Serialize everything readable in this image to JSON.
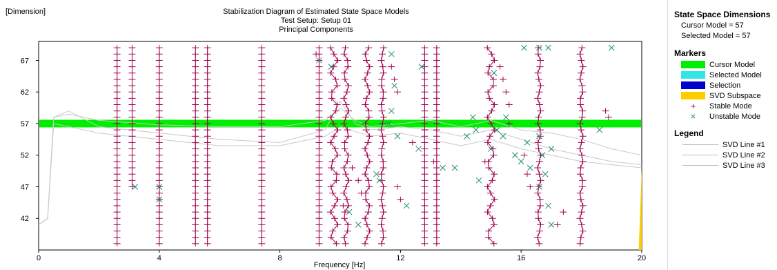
{
  "corner_label": "[Dimension]",
  "chart_data": {
    "type": "scatter",
    "title": "Stabilization Diagram of Estimated State Space Models",
    "subtitle": [
      "Test Setup: Setup 01",
      "Principal Components"
    ],
    "xlabel": "Frequency [Hz]",
    "ylabel": "",
    "xlim": [
      0,
      20
    ],
    "ylim": [
      37,
      70
    ],
    "xticks": [
      0,
      4,
      8,
      12,
      16,
      20
    ],
    "yticks": [
      42,
      47,
      52,
      57,
      62,
      67
    ],
    "grid": false,
    "cursor_model": 57,
    "stable_columns": [
      {
        "x": 2.6,
        "ymin": 38,
        "ymax": 69,
        "wobble": 0
      },
      {
        "x": 3.1,
        "ymin": 47,
        "ymax": 69,
        "wobble": 0
      },
      {
        "x": 4.0,
        "ymin": 38,
        "ymax": 69,
        "wobble": 0
      },
      {
        "x": 5.2,
        "ymin": 38,
        "ymax": 69,
        "wobble": 0
      },
      {
        "x": 5.6,
        "ymin": 38,
        "ymax": 69,
        "wobble": 0
      },
      {
        "x": 7.4,
        "ymin": 38,
        "ymax": 69,
        "wobble": 0
      },
      {
        "x": 9.3,
        "ymin": 38,
        "ymax": 69,
        "wobble": 0
      },
      {
        "x": 9.8,
        "ymin": 38,
        "ymax": 69,
        "wobble": 0.12
      },
      {
        "x": 10.2,
        "ymin": 38,
        "ymax": 69,
        "wobble": 0.08
      },
      {
        "x": 10.9,
        "ymin": 38,
        "ymax": 69,
        "wobble": 0.08
      },
      {
        "x": 11.4,
        "ymin": 38,
        "ymax": 69,
        "wobble": 0.04
      },
      {
        "x": 12.8,
        "ymin": 38,
        "ymax": 69,
        "wobble": 0
      },
      {
        "x": 13.2,
        "ymin": 38,
        "ymax": 69,
        "wobble": 0
      },
      {
        "x": 15.0,
        "ymin": 38,
        "ymax": 69,
        "wobble": 0.12
      },
      {
        "x": 16.6,
        "ymin": 38,
        "ymax": 69,
        "wobble": 0.05
      },
      {
        "x": 18.0,
        "ymin": 38,
        "ymax": 69,
        "wobble": 0.05
      }
    ],
    "extra_stable": [
      [
        9.2,
        68
      ],
      [
        11.7,
        66
      ],
      [
        11.8,
        64
      ],
      [
        11.9,
        62
      ],
      [
        10.6,
        48
      ],
      [
        10.7,
        46
      ],
      [
        10.1,
        44
      ],
      [
        11.9,
        47
      ],
      [
        12.0,
        45
      ],
      [
        13.1,
        51
      ],
      [
        14.8,
        51
      ],
      [
        15.3,
        66
      ],
      [
        15.4,
        64
      ],
      [
        15.5,
        62
      ],
      [
        15.6,
        60
      ],
      [
        15.6,
        57
      ],
      [
        16.1,
        52
      ],
      [
        16.2,
        49
      ],
      [
        16.3,
        47
      ],
      [
        17.4,
        43
      ],
      [
        17.2,
        41
      ],
      [
        18.8,
        59
      ],
      [
        18.9,
        58
      ],
      [
        12.4,
        54
      ],
      [
        10.4,
        50
      ]
    ],
    "unstable": [
      [
        9.3,
        67
      ],
      [
        9.7,
        66
      ],
      [
        11.7,
        68
      ],
      [
        11.8,
        63
      ],
      [
        12.7,
        66
      ],
      [
        11.7,
        59
      ],
      [
        11.6,
        57
      ],
      [
        11.9,
        55
      ],
      [
        12.6,
        53
      ],
      [
        13.8,
        50
      ],
      [
        14.4,
        58
      ],
      [
        14.2,
        55
      ],
      [
        14.5,
        56
      ],
      [
        14.6,
        48
      ],
      [
        15.0,
        53
      ],
      [
        15.2,
        56
      ],
      [
        15.5,
        58
      ],
      [
        15.8,
        52
      ],
      [
        16.0,
        51
      ],
      [
        16.2,
        54
      ],
      [
        16.3,
        50
      ],
      [
        16.6,
        55
      ],
      [
        16.7,
        52
      ],
      [
        16.6,
        47
      ],
      [
        16.8,
        49
      ],
      [
        16.9,
        44
      ],
      [
        17.0,
        41
      ],
      [
        16.1,
        69
      ],
      [
        16.6,
        69
      ],
      [
        16.9,
        69
      ],
      [
        19.0,
        69
      ],
      [
        18.6,
        56
      ],
      [
        10.3,
        43
      ],
      [
        10.6,
        41
      ],
      [
        11.2,
        49
      ],
      [
        11.3,
        48
      ],
      [
        12.2,
        44
      ],
      [
        13.4,
        50
      ],
      [
        3.2,
        47
      ],
      [
        4.0,
        47
      ],
      [
        4.0,
        45
      ],
      [
        15.1,
        65
      ],
      [
        15.4,
        55
      ],
      [
        17.0,
        53
      ]
    ],
    "svd_lines": [
      {
        "name": "SVD Line #1",
        "points": [
          [
            0,
            41
          ],
          [
            0.3,
            42
          ],
          [
            0.5,
            58
          ],
          [
            1,
            58.5
          ],
          [
            2,
            57.5
          ],
          [
            4,
            56.8
          ],
          [
            6,
            56.5
          ],
          [
            8,
            56.5
          ],
          [
            9.5,
            57.5
          ],
          [
            10,
            59.5
          ],
          [
            10.5,
            57.5
          ],
          [
            11,
            56.5
          ],
          [
            12,
            57
          ],
          [
            13,
            57.5
          ],
          [
            14,
            56.5
          ],
          [
            15,
            57.5
          ],
          [
            16,
            56
          ],
          [
            17,
            55.5
          ],
          [
            18,
            54.5
          ],
          [
            19,
            53
          ],
          [
            20,
            52
          ]
        ]
      },
      {
        "name": "SVD Line #2",
        "points": [
          [
            0,
            41
          ],
          [
            0.3,
            42
          ],
          [
            0.5,
            58
          ],
          [
            1,
            59
          ],
          [
            2,
            56.5
          ],
          [
            4,
            55.5
          ],
          [
            6,
            54.5
          ],
          [
            8,
            54
          ],
          [
            9.5,
            56
          ],
          [
            10,
            60.5
          ],
          [
            10.5,
            57
          ],
          [
            11,
            56
          ],
          [
            12,
            56.5
          ],
          [
            13,
            56
          ],
          [
            14,
            55
          ],
          [
            15,
            56
          ],
          [
            16,
            54.5
          ],
          [
            17,
            53
          ],
          [
            18,
            52
          ],
          [
            19,
            51
          ],
          [
            20,
            50.5
          ]
        ]
      },
      {
        "name": "SVD Line #3",
        "points": [
          [
            0,
            41
          ],
          [
            0.3,
            42
          ],
          [
            0.5,
            57
          ],
          [
            1,
            56.5
          ],
          [
            2,
            55.5
          ],
          [
            4,
            54.5
          ],
          [
            6,
            53.5
          ],
          [
            8,
            53.5
          ],
          [
            9.5,
            55
          ],
          [
            10,
            56.5
          ],
          [
            11,
            55
          ],
          [
            12,
            55.5
          ],
          [
            13,
            54.5
          ],
          [
            14,
            53.5
          ],
          [
            15,
            54.5
          ],
          [
            16,
            53
          ],
          [
            17,
            52
          ],
          [
            18,
            51
          ],
          [
            19,
            50.5
          ],
          [
            20,
            50
          ]
        ]
      }
    ],
    "colors": {
      "cursor": "#00ee00",
      "selected": "#33e5e5",
      "selection": "#0000cc",
      "svd": "#ffcc00",
      "stable": "#a0004a",
      "unstable": "#208a70",
      "svd_line": "#c8c8c8"
    }
  },
  "panel": {
    "dims_title": "State Space Dimensions",
    "cursor_model": "Cursor Model = 57",
    "selected_model": "Selected Model = 57",
    "markers_title": "Markers",
    "markers": [
      {
        "label": "Cursor Model",
        "kind": "swatch",
        "color": "#00ee00"
      },
      {
        "label": "Selected Model",
        "kind": "swatch",
        "color": "#33e5e5"
      },
      {
        "label": "Selection",
        "kind": "swatch",
        "color": "#0000cc"
      },
      {
        "label": "SVD Subspace",
        "kind": "swatch",
        "color": "#ffcc00"
      },
      {
        "label": "Stable Mode",
        "kind": "glyph",
        "glyph": "+",
        "color": "#a0004a"
      },
      {
        "label": "Unstable Mode",
        "kind": "glyph",
        "glyph": "×",
        "color": "#208a70"
      }
    ],
    "legend_title": "Legend",
    "legend": [
      "SVD Line #1",
      "SVD Line #2",
      "SVD Line #3"
    ]
  }
}
